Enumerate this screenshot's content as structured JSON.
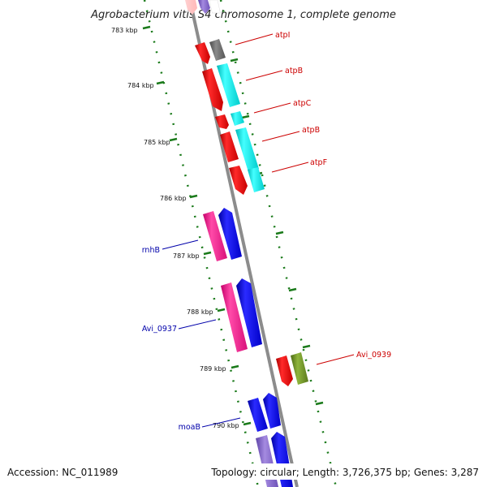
{
  "title": "Agrobacterium vitis S4 chromosome 1, complete genome",
  "footer": {
    "accession": "Accession: NC_011989",
    "summary": "Topology: circular; Length: 3,726,375 bp; Genes: 3,287"
  },
  "ticks": [
    {
      "label": "783 kbp"
    },
    {
      "label": "784 kbp"
    },
    {
      "label": "785 kbp"
    },
    {
      "label": "786 kbp"
    },
    {
      "label": "787 kbp"
    },
    {
      "label": "788 kbp"
    },
    {
      "label": "789 kbp"
    },
    {
      "label": "790 kbp"
    }
  ],
  "gene_labels": [
    {
      "id": "atpI",
      "text": "atpI",
      "color": "#cc0000"
    },
    {
      "id": "atpB-1",
      "text": "atpB",
      "color": "#cc0000"
    },
    {
      "id": "atpC",
      "text": "atpC",
      "color": "#cc0000"
    },
    {
      "id": "atpB-2",
      "text": "atpB",
      "color": "#cc0000"
    },
    {
      "id": "atpF",
      "text": "atpF",
      "color": "#cc0000"
    },
    {
      "id": "rnhB",
      "text": "rnhB",
      "color": "#0000aa"
    },
    {
      "id": "Avi_0937",
      "text": "Avi_0937",
      "color": "#0000aa"
    },
    {
      "id": "Avi_0939",
      "text": "Avi_0939",
      "color": "#cc0000"
    },
    {
      "id": "moaB",
      "text": "moaB",
      "color": "#0000aa"
    }
  ],
  "colors": {
    "backbone": "#8c8c8c",
    "tick": "#1a7a1a",
    "cds_forward": "#ff0000",
    "cds_reverse": "#0000ff",
    "gene_pink": "#ff3399",
    "gene_cyan": "#00e5e5",
    "gene_gray": "#707070",
    "gene_olive": "#6b8e23",
    "gene_lavender": "#8866cc"
  }
}
